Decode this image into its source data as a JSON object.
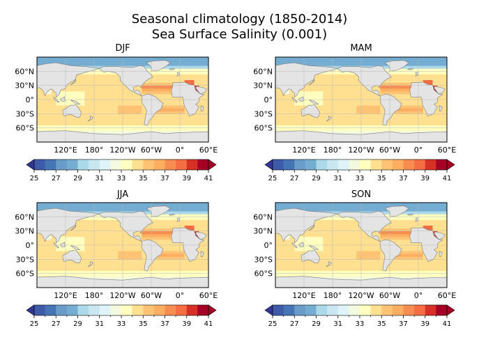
{
  "figure": {
    "title_line1": "Seasonal climatology  (1850-2014)",
    "title_line2": "Sea Surface Salinity (0.001)"
  },
  "chart_data": [
    {
      "type": "heatmap",
      "panel": "DJF",
      "title": "DJF",
      "variable": "Sea Surface Salinity",
      "units": "0.001",
      "x_tick_labels": [
        "120°E",
        "180°",
        "120°W",
        "60°W",
        "0°",
        "60°E"
      ],
      "y_tick_labels": [
        "60°N",
        "30°N",
        "0°",
        "30°S",
        "60°S"
      ],
      "colorbar": {
        "vmin": 25,
        "vmax": 41,
        "step": 1,
        "ticks": [
          25,
          27,
          29,
          31,
          33,
          35,
          37,
          39,
          41
        ],
        "extend": "both"
      }
    },
    {
      "type": "heatmap",
      "panel": "MAM",
      "title": "MAM",
      "variable": "Sea Surface Salinity",
      "units": "0.001",
      "x_tick_labels": [
        "120°E",
        "180°",
        "120°W",
        "60°W",
        "0°",
        "60°E"
      ],
      "y_tick_labels": [
        "60°N",
        "30°N",
        "0°",
        "30°S",
        "60°S"
      ],
      "colorbar": {
        "vmin": 25,
        "vmax": 41,
        "step": 1,
        "ticks": [
          25,
          27,
          29,
          31,
          33,
          35,
          37,
          39,
          41
        ],
        "extend": "both"
      }
    },
    {
      "type": "heatmap",
      "panel": "JJA",
      "title": "JJA",
      "variable": "Sea Surface Salinity",
      "units": "0.001",
      "x_tick_labels": [
        "120°E",
        "180°",
        "120°W",
        "60°W",
        "0°",
        "60°E"
      ],
      "y_tick_labels": [
        "60°N",
        "30°N",
        "0°",
        "30°S",
        "60°S"
      ],
      "colorbar": {
        "vmin": 25,
        "vmax": 41,
        "step": 1,
        "ticks": [
          25,
          27,
          29,
          31,
          33,
          35,
          37,
          39,
          41
        ],
        "extend": "both"
      }
    },
    {
      "type": "heatmap",
      "panel": "SON",
      "title": "SON",
      "variable": "Sea Surface Salinity",
      "units": "0.001",
      "x_tick_labels": [
        "120°E",
        "180°",
        "120°W",
        "60°W",
        "0°",
        "60°E"
      ],
      "y_tick_labels": [
        "60°N",
        "30°N",
        "0°",
        "30°S",
        "60°S"
      ],
      "colorbar": {
        "vmin": 25,
        "vmax": 41,
        "step": 1,
        "ticks": [
          25,
          27,
          29,
          31,
          33,
          35,
          37,
          39,
          41
        ],
        "extend": "both"
      }
    }
  ],
  "colors": {
    "cmap": [
      "#313695",
      "#3f5aa8",
      "#4575b4",
      "#6a9cc9",
      "#74add1",
      "#abd9e9",
      "#c9e7f1",
      "#e0f3f8",
      "#f3fadf",
      "#ffffbf",
      "#fee090",
      "#fdc374",
      "#fdae61",
      "#f88d52",
      "#f46d43",
      "#d73027",
      "#a50026"
    ],
    "land": "#e4e4e4",
    "coast": "#7a7a7a"
  }
}
